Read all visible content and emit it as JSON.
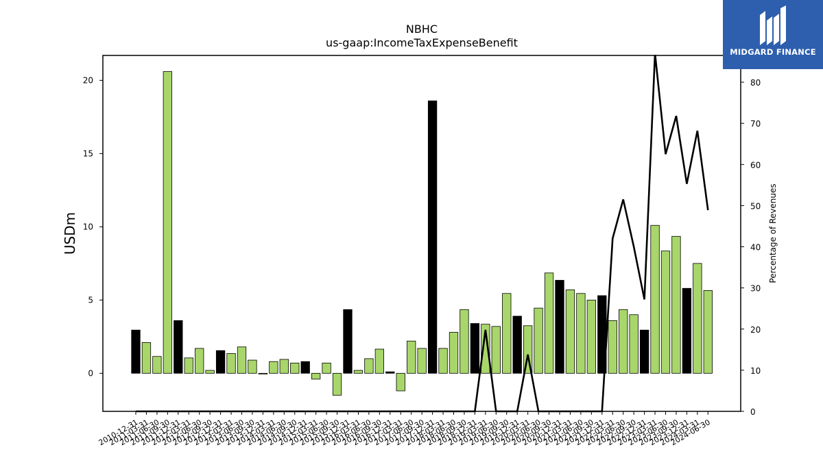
{
  "chart_data": {
    "type": "bar",
    "title": "NBHC",
    "subtitle": "us-gaap:IncomeTaxExpenseBenefit",
    "ylabel": "USDm",
    "y2label": "Percentage of Revenues",
    "ylim": [
      -2.6,
      21.7
    ],
    "y2lim": [
      0,
      86.5
    ],
    "yticks": [
      0,
      5,
      10,
      15,
      20
    ],
    "y2ticks": [
      0,
      10,
      20,
      30,
      40,
      50,
      60,
      70,
      80
    ],
    "bar_colors": {
      "annual": "#000000",
      "quarter": "#a8d66b"
    },
    "line_color": "#000000",
    "grid": false,
    "categories": [
      "2010-12-31",
      "2011-03-31",
      "2011-06-30",
      "2011-09-30",
      "2011-12-31",
      "2012-03-31",
      "2012-06-30",
      "2012-09-30",
      "2012-12-31",
      "2013-03-31",
      "2013-06-30",
      "2013-09-30",
      "2013-12-31",
      "2014-03-31",
      "2014-06-30",
      "2014-09-30",
      "2014-12-31",
      "2015-03-31",
      "2015-06-30",
      "2015-09-30",
      "2015-12-31",
      "2016-03-31",
      "2016-06-30",
      "2016-09-30",
      "2016-12-31",
      "2017-03-31",
      "2017-06-30",
      "2017-09-30",
      "2017-12-31",
      "2018-03-31",
      "2018-06-30",
      "2018-09-30",
      "2018-12-31",
      "2019-03-31",
      "2019-06-30",
      "2019-09-30",
      "2019-12-31",
      "2020-03-31",
      "2020-06-30",
      "2020-09-30",
      "2020-12-31",
      "2021-03-31",
      "2021-06-30",
      "2021-09-30",
      "2021-12-31",
      "2022-03-31",
      "2022-06-30",
      "2022-09-30",
      "2022-12-31",
      "2023-03-31",
      "2023-06-30",
      "2023-09-30",
      "2023-12-31",
      "2024-03-31",
      "2024-06-30"
    ],
    "series": [
      {
        "values": [
          2.95,
          2.1,
          1.15,
          20.6,
          3.6,
          1.05,
          1.7,
          0.2,
          1.55,
          1.35,
          1.8,
          0.9,
          -0.05,
          0.8,
          0.95,
          0.7,
          0.8,
          -0.4,
          0.7,
          -1.5,
          4.35,
          0.2,
          1.0,
          1.65,
          0.1,
          -1.2,
          2.2,
          1.7,
          18.6,
          1.7,
          2.8,
          4.35,
          3.4,
          3.35,
          3.2,
          5.45,
          3.9,
          3.25,
          4.45,
          6.85,
          6.35,
          5.7,
          5.45,
          5.0,
          5.3,
          3.6,
          4.35,
          4.0,
          2.95,
          10.1,
          8.35,
          9.35,
          5.8,
          7.5,
          5.65
        ],
        "annual": [
          true,
          false,
          false,
          false,
          true,
          false,
          false,
          false,
          true,
          false,
          false,
          false,
          false,
          false,
          false,
          false,
          true,
          false,
          false,
          false,
          true,
          false,
          false,
          false,
          true,
          false,
          false,
          false,
          true,
          false,
          false,
          false,
          true,
          false,
          false,
          false,
          true,
          false,
          false,
          false,
          true,
          false,
          false,
          false,
          true,
          false,
          false,
          false,
          true,
          false,
          false,
          false,
          true,
          false,
          false
        ]
      },
      {
        "axis": "right",
        "values": [
          0,
          0,
          0,
          0,
          0,
          0,
          0,
          0,
          0,
          0,
          0,
          0,
          0,
          0,
          0,
          0,
          0,
          0,
          0,
          0,
          0,
          0,
          0,
          0,
          0,
          0,
          0,
          0,
          0,
          0,
          0,
          0,
          0,
          19.8,
          0,
          0,
          0,
          13.8,
          0,
          0,
          0,
          0,
          0,
          0,
          0,
          42,
          51.5,
          40,
          27.2,
          87,
          62.5,
          71.8,
          55.3,
          68.2,
          48.9
        ]
      }
    ]
  },
  "logo": {
    "text": "MIDGARD FINANCE"
  }
}
